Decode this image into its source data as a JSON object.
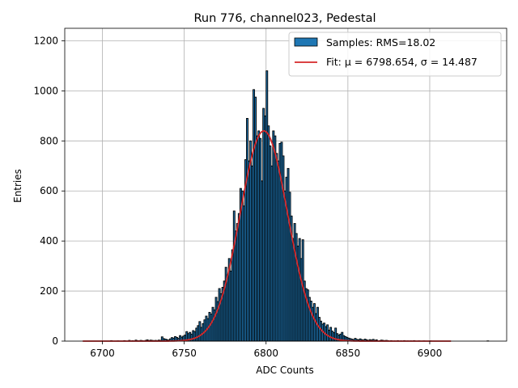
{
  "chart_data": {
    "type": "bar",
    "title": "Run 776, channel023, Pedestal",
    "xlabel": "ADC Counts",
    "ylabel": "Entries",
    "xlim": [
      6677,
      6947
    ],
    "ylim": [
      0,
      1250
    ],
    "x_ticks": [
      6700,
      6750,
      6800,
      6850,
      6900
    ],
    "y_ticks": [
      0,
      200,
      400,
      600,
      800,
      1000,
      1200
    ],
    "grid": true,
    "legend_position": "top-right",
    "legend": [
      {
        "label": "Samples: RMS=18.02",
        "kind": "patch",
        "color": "#1f77b4"
      },
      {
        "label": "Fit: μ = 6798.654, σ = 14.487",
        "kind": "line",
        "color": "#d62728"
      }
    ],
    "histogram": {
      "name": "Samples: RMS=18.02",
      "bin_width": 1,
      "bins": [
        [
          6705,
          2
        ],
        [
          6709,
          1
        ],
        [
          6713,
          2
        ],
        [
          6716,
          3
        ],
        [
          6718,
          2
        ],
        [
          6720,
          4
        ],
        [
          6721,
          2
        ],
        [
          6722,
          1
        ],
        [
          6723,
          3
        ],
        [
          6724,
          2
        ],
        [
          6726,
          3
        ],
        [
          6727,
          5
        ],
        [
          6728,
          2
        ],
        [
          6729,
          4
        ],
        [
          6730,
          3
        ],
        [
          6731,
          2
        ],
        [
          6732,
          3
        ],
        [
          6733,
          2
        ],
        [
          6734,
          4
        ],
        [
          6735,
          3
        ],
        [
          6736,
          17
        ],
        [
          6737,
          10
        ],
        [
          6738,
          8
        ],
        [
          6739,
          6
        ],
        [
          6740,
          4
        ],
        [
          6741,
          9
        ],
        [
          6742,
          14
        ],
        [
          6743,
          12
        ],
        [
          6744,
          18
        ],
        [
          6745,
          15
        ],
        [
          6746,
          11
        ],
        [
          6747,
          22
        ],
        [
          6748,
          16
        ],
        [
          6749,
          20
        ],
        [
          6750,
          24
        ],
        [
          6751,
          38
        ],
        [
          6752,
          30
        ],
        [
          6753,
          35
        ],
        [
          6754,
          28
        ],
        [
          6755,
          42
        ],
        [
          6756,
          38
        ],
        [
          6757,
          52
        ],
        [
          6758,
          62
        ],
        [
          6759,
          78
        ],
        [
          6760,
          55
        ],
        [
          6761,
          70
        ],
        [
          6762,
          85
        ],
        [
          6763,
          100
        ],
        [
          6764,
          90
        ],
        [
          6765,
          115
        ],
        [
          6766,
          108
        ],
        [
          6767,
          135
        ],
        [
          6768,
          125
        ],
        [
          6769,
          175
        ],
        [
          6770,
          158
        ],
        [
          6771,
          210
        ],
        [
          6772,
          190
        ],
        [
          6773,
          215
        ],
        [
          6774,
          240
        ],
        [
          6775,
          295
        ],
        [
          6776,
          265
        ],
        [
          6777,
          330
        ],
        [
          6778,
          280
        ],
        [
          6779,
          365
        ],
        [
          6780,
          520
        ],
        [
          6781,
          440
        ],
        [
          6782,
          470
        ],
        [
          6783,
          510
        ],
        [
          6784,
          610
        ],
        [
          6785,
          600
        ],
        [
          6786,
          540
        ],
        [
          6787,
          725
        ],
        [
          6788,
          890
        ],
        [
          6789,
          720
        ],
        [
          6790,
          800
        ],
        [
          6791,
          700
        ],
        [
          6792,
          1005
        ],
        [
          6793,
          975
        ],
        [
          6794,
          820
        ],
        [
          6795,
          840
        ],
        [
          6796,
          810
        ],
        [
          6797,
          640
        ],
        [
          6798,
          930
        ],
        [
          6799,
          900
        ],
        [
          6800,
          1080
        ],
        [
          6801,
          860
        ],
        [
          6802,
          780
        ],
        [
          6803,
          700
        ],
        [
          6804,
          840
        ],
        [
          6805,
          820
        ],
        [
          6806,
          750
        ],
        [
          6807,
          720
        ],
        [
          6808,
          790
        ],
        [
          6809,
          795
        ],
        [
          6810,
          740
        ],
        [
          6811,
          600
        ],
        [
          6812,
          655
        ],
        [
          6813,
          690
        ],
        [
          6814,
          595
        ],
        [
          6815,
          500
        ],
        [
          6816,
          410
        ],
        [
          6817,
          470
        ],
        [
          6818,
          430
        ],
        [
          6819,
          380
        ],
        [
          6820,
          410
        ],
        [
          6821,
          330
        ],
        [
          6822,
          405
        ],
        [
          6823,
          240
        ],
        [
          6824,
          210
        ],
        [
          6825,
          205
        ],
        [
          6826,
          175
        ],
        [
          6827,
          160
        ],
        [
          6828,
          135
        ],
        [
          6829,
          150
        ],
        [
          6830,
          110
        ],
        [
          6831,
          135
        ],
        [
          6832,
          95
        ],
        [
          6833,
          80
        ],
        [
          6834,
          68
        ],
        [
          6835,
          72
        ],
        [
          6836,
          58
        ],
        [
          6837,
          65
        ],
        [
          6838,
          44
        ],
        [
          6839,
          55
        ],
        [
          6840,
          40
        ],
        [
          6841,
          34
        ],
        [
          6842,
          52
        ],
        [
          6843,
          30
        ],
        [
          6844,
          24
        ],
        [
          6845,
          28
        ],
        [
          6846,
          35
        ],
        [
          6847,
          22
        ],
        [
          6848,
          18
        ],
        [
          6849,
          15
        ],
        [
          6850,
          12
        ],
        [
          6851,
          10
        ],
        [
          6852,
          8
        ],
        [
          6853,
          6
        ],
        [
          6854,
          11
        ],
        [
          6855,
          7
        ],
        [
          6856,
          5
        ],
        [
          6857,
          9
        ],
        [
          6858,
          6
        ],
        [
          6859,
          4
        ],
        [
          6860,
          8
        ],
        [
          6861,
          5
        ],
        [
          6862,
          3
        ],
        [
          6863,
          6
        ],
        [
          6864,
          4
        ],
        [
          6865,
          7
        ],
        [
          6866,
          3
        ],
        [
          6867,
          5
        ],
        [
          6869,
          2
        ],
        [
          6870,
          4
        ],
        [
          6871,
          3
        ],
        [
          6872,
          2
        ],
        [
          6873,
          3
        ],
        [
          6874,
          2
        ],
        [
          6876,
          2
        ],
        [
          6878,
          1
        ],
        [
          6880,
          2
        ],
        [
          6882,
          1
        ],
        [
          6884,
          2
        ],
        [
          6886,
          1
        ],
        [
          6888,
          1
        ],
        [
          6890,
          2
        ],
        [
          6893,
          1
        ],
        [
          6896,
          1
        ],
        [
          6900,
          1
        ],
        [
          6935,
          1
        ]
      ]
    },
    "fit": {
      "name": "Fit: μ = 6798.654, σ = 14.487",
      "type": "gaussian",
      "mu": 6798.654,
      "sigma": 14.487,
      "amplitude": 840,
      "x_range": [
        6688,
        6913
      ]
    },
    "colors": {
      "bar_fill": "#1f77b4",
      "bar_edge": "#000000",
      "fit_line": "#d62728",
      "grid": "#b0b0b0"
    }
  }
}
